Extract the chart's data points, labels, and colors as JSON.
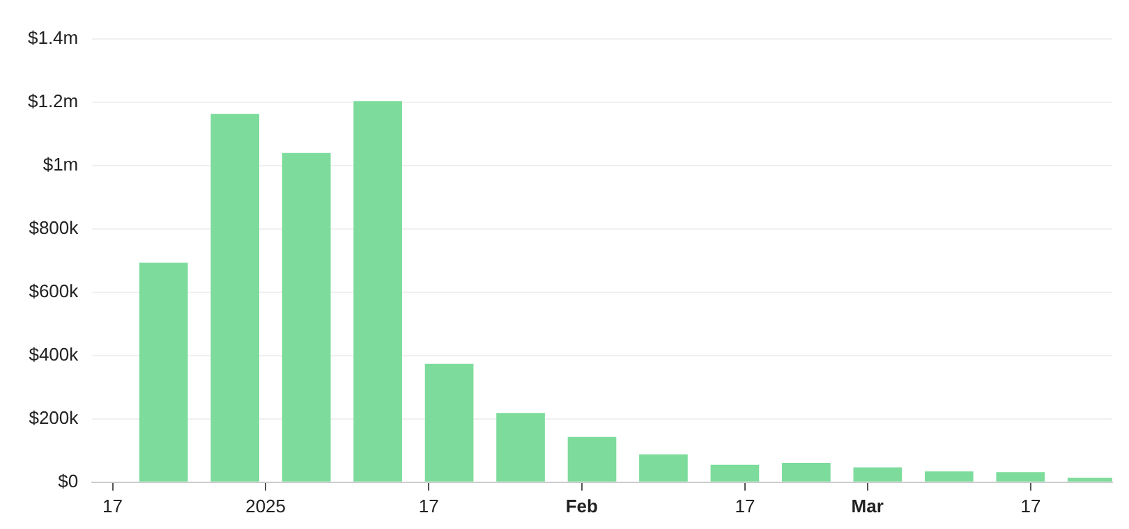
{
  "chart_data": {
    "type": "bar",
    "x": [
      "2024-12-22",
      "2024-12-29",
      "2025-01-05",
      "2025-01-12",
      "2025-01-19",
      "2025-01-26",
      "2025-02-02",
      "2025-02-09",
      "2025-02-16",
      "2025-02-23",
      "2025-03-02",
      "2025-03-09",
      "2025-03-16",
      "2025-03-23"
    ],
    "values": [
      693000,
      1163000,
      1040000,
      1204000,
      374000,
      219000,
      143000,
      88000,
      55000,
      61000,
      47000,
      34000,
      32000,
      14000
    ],
    "color": "#7ddc9c",
    "xlim": [
      "2024-12-15",
      "2025-03-25"
    ],
    "xticks": [
      {
        "value": "2024-12-17",
        "label": "17"
      },
      {
        "value": "2025-01-01",
        "label": "2025"
      },
      {
        "value": "2025-01-17",
        "label": "17"
      },
      {
        "value": "2025-02-01",
        "label": "Feb"
      },
      {
        "value": "2025-02-17",
        "label": "17"
      },
      {
        "value": "2025-03-01",
        "label": "Mar"
      },
      {
        "value": "2025-03-17",
        "label": "17"
      }
    ],
    "ylim": [
      0,
      1400000
    ],
    "yticks": [
      {
        "value": 0,
        "label": "$0"
      },
      {
        "value": 200000,
        "label": "$200k"
      },
      {
        "value": 400000,
        "label": "$400k"
      },
      {
        "value": 600000,
        "label": "$600k"
      },
      {
        "value": 800000,
        "label": "$800k"
      },
      {
        "value": 1000000,
        "label": "$1m"
      },
      {
        "value": 1200000,
        "label": "$1.2m"
      },
      {
        "value": 1400000,
        "label": "$1.4m"
      }
    ],
    "grid": "y",
    "legend": false
  }
}
